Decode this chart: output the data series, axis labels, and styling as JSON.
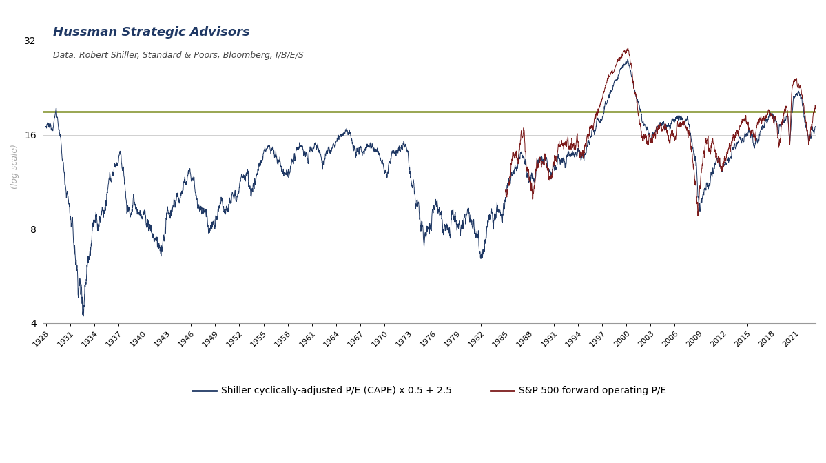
{
  "title1": "Hussman Strategic Advisors",
  "title2": "Data: Robert Shiller, Standard & Poors, Bloomberg, I/B/E/S",
  "ylabel": "(log scale)",
  "legend1": "Shiller cyclically-adjusted P/E (CAPE) x 0.5 + 2.5",
  "legend2": "S&P 500 forward operating P/E",
  "color_cape": "#1f3864",
  "color_fpe": "#7b1a1a",
  "color_hline": "#7a8c1e",
  "hline_y": 19.0,
  "ylim_low": 4,
  "ylim_high": 40,
  "yticks": [
    4,
    8,
    16,
    32
  ],
  "bg_color": "#ffffff",
  "grid_color": "#d0d0d0",
  "title1_color": "#1f3864",
  "title2_color": "#444444",
  "xtick_start": 1928,
  "xtick_end": 2023,
  "xtick_step": 3
}
